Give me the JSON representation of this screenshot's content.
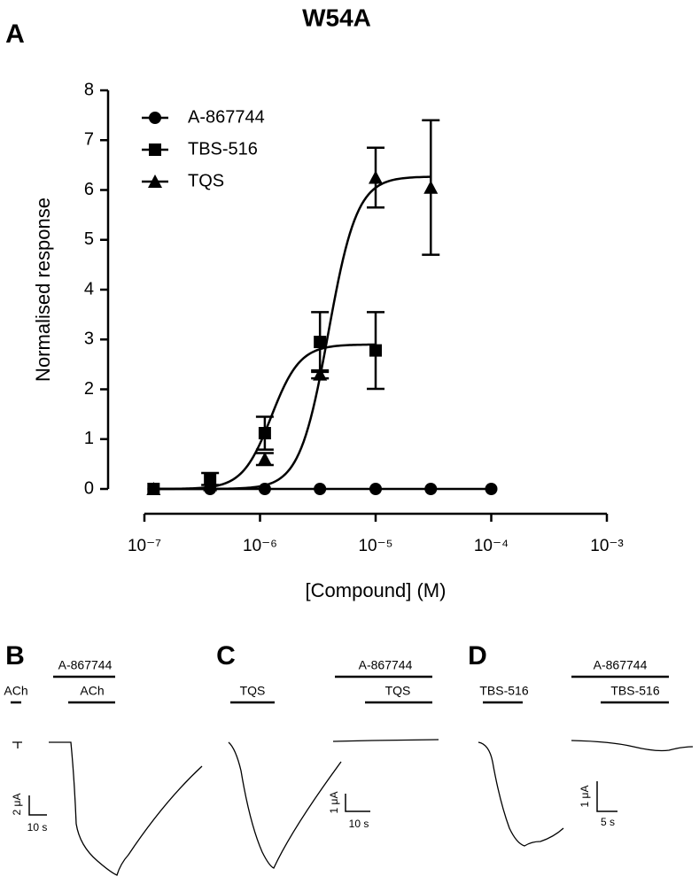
{
  "title": "W54A",
  "chart_data": {
    "type": "dose-response",
    "panel_label": "A",
    "x_label": "[Compound] (M)",
    "y_label": "Normalised response",
    "log_x": true,
    "legend": "upper left",
    "xlim": [
      1e-07,
      0.001
    ],
    "xticks": [
      {
        "value": 1e-07,
        "label": "10⁻⁷"
      },
      {
        "value": 1e-06,
        "label": "10⁻⁶"
      },
      {
        "value": 1e-05,
        "label": "10⁻⁵"
      },
      {
        "value": 0.0001,
        "label": "10⁻⁴"
      },
      {
        "value": 0.001,
        "label": "10⁻³"
      }
    ],
    "ylim": [
      0,
      8
    ],
    "yticks": [
      0,
      1,
      2,
      3,
      4,
      5,
      6,
      7,
      8
    ],
    "series": [
      {
        "name": "A-867744",
        "marker": "circle",
        "color": "#000000",
        "x": [
          1.2e-07,
          3.7e-07,
          1.1e-06,
          3.3e-06,
          1e-05,
          3e-05,
          0.0001
        ],
        "values": [
          0,
          0,
          0,
          0,
          0,
          0,
          0
        ],
        "fit": {
          "top": 0
        }
      },
      {
        "name": "TBS-516",
        "marker": "square",
        "color": "#000000",
        "x": [
          1.2e-07,
          3.7e-07,
          1.1e-06,
          3.3e-06,
          1e-05
        ],
        "values": [
          0,
          0.2,
          1.12,
          2.95,
          2.78
        ],
        "errors": [
          null,
          0.12,
          0.33,
          0.6,
          0.77
        ],
        "fit": {
          "top": 2.9,
          "ec50": 1.25e-06,
          "hill": 3.5
        }
      },
      {
        "name": "TQS",
        "marker": "triangle",
        "color": "#000000",
        "x": [
          1.2e-07,
          3.7e-07,
          1.1e-06,
          3.3e-06,
          1e-05,
          3e-05
        ],
        "values": [
          0,
          0.08,
          0.6,
          2.3,
          6.25,
          6.05
        ],
        "errors": [
          null,
          null,
          0.12,
          0.08,
          0.6,
          1.35
        ],
        "fit": {
          "top": 6.27,
          "ec50": 3.9e-06,
          "hill": 3.5
        }
      }
    ]
  },
  "panels": [
    {
      "label": "B",
      "bars": [
        "ACh",
        "A-867744",
        "ACh"
      ],
      "scale": [
        "2 μA",
        "10 s"
      ]
    },
    {
      "label": "C",
      "bars": [
        "TQS",
        "A-867744",
        "TQS"
      ],
      "scale": [
        "1 μA",
        "10 s"
      ]
    },
    {
      "label": "D",
      "bars": [
        "TBS-516",
        "A-867744",
        "TBS-516"
      ],
      "scale": [
        "1 μA",
        "5 s"
      ]
    }
  ]
}
